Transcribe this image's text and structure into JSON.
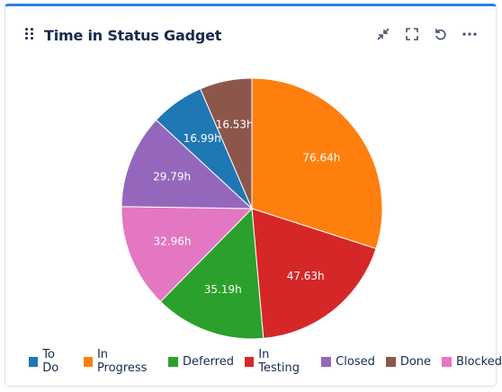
{
  "gadget": {
    "title": "Time in Status Gadget",
    "actions": [
      {
        "name": "minimize-icon"
      },
      {
        "name": "fullscreen-icon"
      },
      {
        "name": "refresh-icon"
      },
      {
        "name": "more-icon"
      }
    ]
  },
  "chart_data": {
    "type": "pie",
    "title": "",
    "series": [
      {
        "name": "To Do",
        "value": 16.99,
        "label": "16.99h",
        "color": "#1f77b4"
      },
      {
        "name": "In Progress",
        "value": 76.64,
        "label": "76.64h",
        "color": "#ff7f0e"
      },
      {
        "name": "Deferred",
        "value": 35.19,
        "label": "35.19h",
        "color": "#2ca02c"
      },
      {
        "name": "In Testing",
        "value": 47.63,
        "label": "47.63h",
        "color": "#d62728"
      },
      {
        "name": "Closed",
        "value": 29.79,
        "label": "29.79h",
        "color": "#9467bd"
      },
      {
        "name": "Done",
        "value": 16.53,
        "label": "16.53h",
        "color": "#8c564b"
      },
      {
        "name": "Blocked",
        "value": 32.96,
        "label": "32.96h",
        "color": "#e377c2"
      }
    ],
    "slice_order": [
      "In Progress",
      "In Testing",
      "Deferred",
      "Blocked",
      "Closed",
      "To Do",
      "Done"
    ],
    "legend_position": "bottom"
  }
}
